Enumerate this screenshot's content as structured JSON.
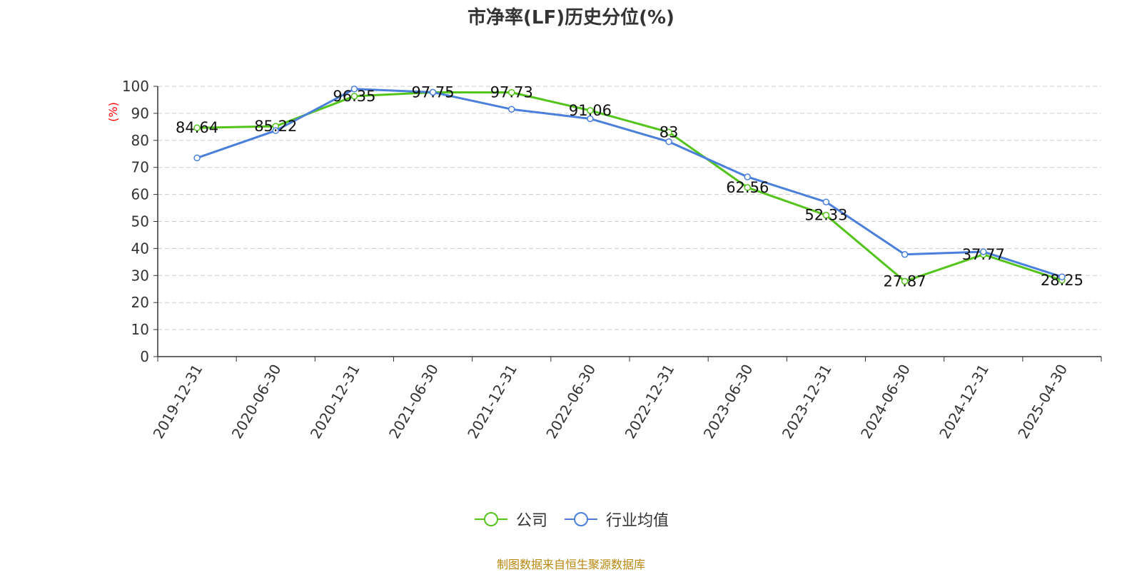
{
  "title": "市净率(LF)历史分位(%)",
  "source": "制图数据来自恒生聚源数据库",
  "colors": {
    "company": "#52c41a",
    "industry": "#4a7fdc",
    "grid": "#cccccc",
    "axis": "#333333",
    "unit": "#ff0000"
  },
  "chart_data": {
    "type": "line",
    "title": "市净率(LF)历史分位(%)",
    "ylabel": "(%)",
    "ylim": [
      0,
      100
    ],
    "yticks": [
      0,
      10,
      20,
      30,
      40,
      50,
      60,
      70,
      80,
      90,
      100
    ],
    "grid": true,
    "legend_position": "bottom-center",
    "categories": [
      "2019-12-31",
      "2020-06-30",
      "2020-12-31",
      "2021-06-30",
      "2021-12-31",
      "2022-06-30",
      "2022-12-31",
      "2023-06-30",
      "2023-12-31",
      "2024-06-30",
      "2024-12-31",
      "2025-04-30"
    ],
    "series": [
      {
        "name": "公司",
        "values": [
          84.64,
          85.22,
          96.35,
          97.75,
          97.73,
          91.06,
          83,
          62.56,
          52.33,
          27.87,
          37.77,
          28.25
        ],
        "labels": true
      },
      {
        "name": "行业均值",
        "values": [
          73.5,
          83.6,
          99.0,
          97.8,
          91.5,
          88.0,
          79.5,
          66.5,
          57.2,
          37.8,
          38.8,
          29.5
        ],
        "labels": false
      }
    ]
  }
}
